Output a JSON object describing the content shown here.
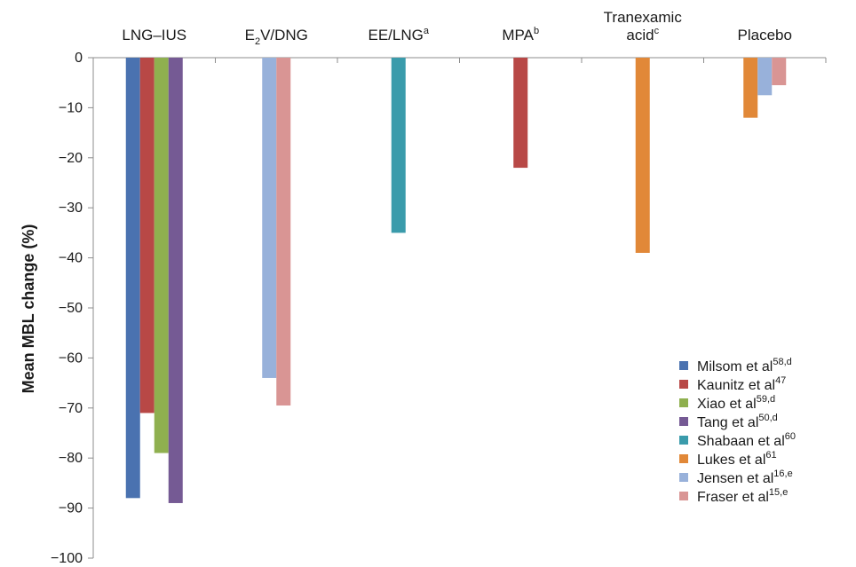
{
  "chart_data": {
    "type": "bar",
    "ylabel": "Mean MBL change (%)",
    "ylim": [
      -100,
      0
    ],
    "yticks": [
      0,
      -10,
      -20,
      -30,
      -40,
      -50,
      -60,
      -70,
      -80,
      -90,
      -100
    ],
    "ytick_labels": [
      "0",
      "−10",
      "−20",
      "−30",
      "−40",
      "−50",
      "−60",
      "−70",
      "−80",
      "−90",
      "−100"
    ],
    "categories": [
      {
        "lines": [
          {
            "text": "LNG–IUS",
            "sup": ""
          }
        ]
      },
      {
        "lines": [
          {
            "text": "E",
            "sub": "2",
            "text2": "V/DNG",
            "sup": ""
          }
        ]
      },
      {
        "lines": [
          {
            "text": "EE/LNG",
            "sup": "a"
          }
        ]
      },
      {
        "lines": [
          {
            "text": "MPA",
            "sup": "b"
          }
        ]
      },
      {
        "lines": [
          {
            "text": "Tranexamic",
            "sup": ""
          },
          {
            "text": "acid",
            "sup": "c"
          }
        ]
      },
      {
        "lines": [
          {
            "text": "Placebo",
            "sup": ""
          }
        ]
      }
    ],
    "series": [
      {
        "name": "Milsom et al",
        "sup": "58,d",
        "color": "#4a72b0",
        "values": [
          -88,
          null,
          null,
          null,
          null,
          null
        ]
      },
      {
        "name": "Kaunitz et al",
        "sup": "47",
        "color": "#b84846",
        "values": [
          -71,
          null,
          null,
          -22,
          null,
          null
        ]
      },
      {
        "name": "Xiao et al",
        "sup": "59,d",
        "color": "#8fb04f",
        "values": [
          -79,
          null,
          null,
          null,
          null,
          null
        ]
      },
      {
        "name": "Tang et al",
        "sup": "50,d",
        "color": "#755a94",
        "values": [
          -89,
          null,
          null,
          null,
          null,
          null
        ]
      },
      {
        "name": "Shabaan et al",
        "sup": "60",
        "color": "#3a9bab",
        "values": [
          null,
          null,
          -35,
          null,
          null,
          null
        ]
      },
      {
        "name": "Lukes et al",
        "sup": "61",
        "color": "#e18838",
        "values": [
          null,
          null,
          null,
          null,
          -39,
          -12
        ]
      },
      {
        "name": "Jensen et al",
        "sup": "16,e",
        "color": "#98b1da",
        "values": [
          null,
          -64,
          null,
          null,
          null,
          -7.5
        ]
      },
      {
        "name": "Fraser et al",
        "sup": "15,e",
        "color": "#d99594",
        "values": [
          null,
          -69.5,
          null,
          null,
          null,
          -5.5
        ]
      }
    ],
    "legend_position": "bottom-right",
    "grid": false
  }
}
